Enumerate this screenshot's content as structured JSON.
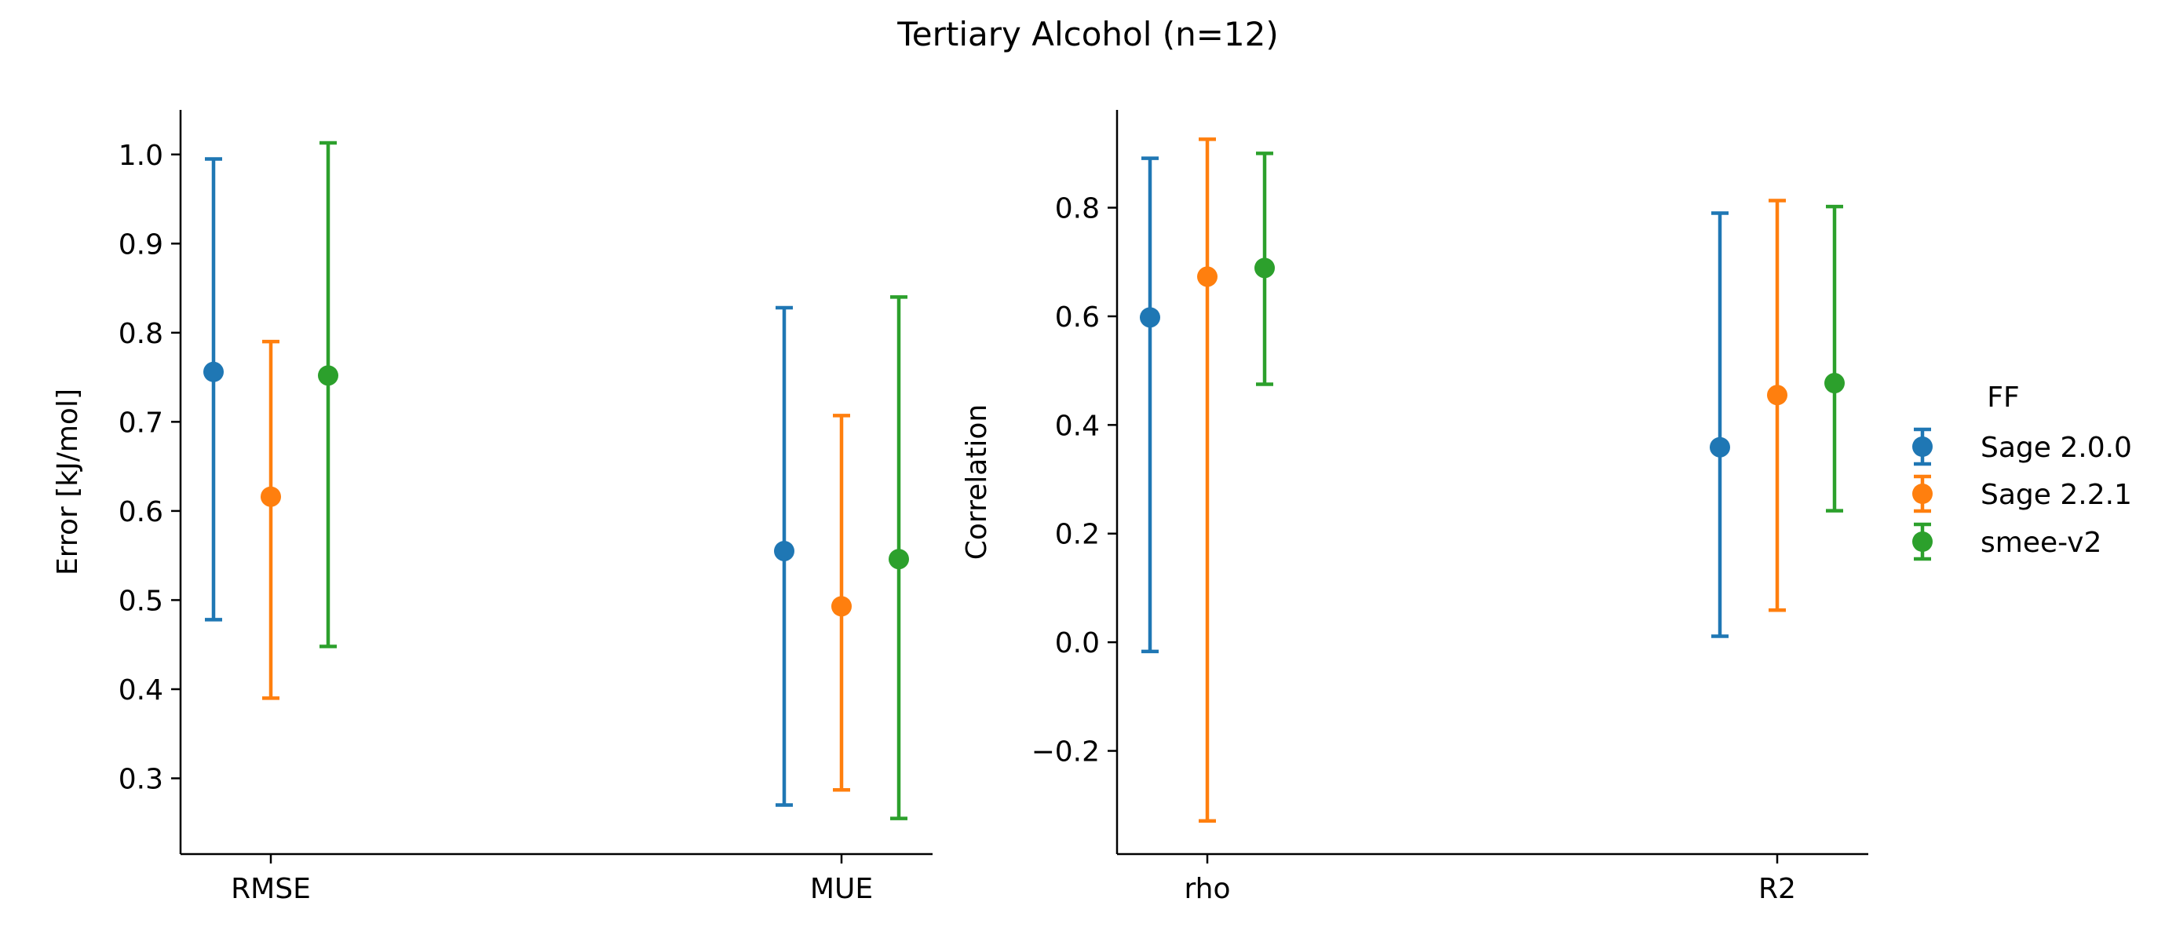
{
  "figure": {
    "title": "Tertiary Alcohol (n=12)"
  },
  "legend": {
    "title": "FF",
    "placement": "right",
    "entries": [
      "Sage 2.0.0",
      "Sage 2.2.1",
      "smee-v2"
    ]
  },
  "colors": {
    "Sage 2.0.0": "#1f77b4",
    "Sage 2.2.1": "#ff7f0e",
    "smee-v2": "#2ca02c"
  },
  "chart_data": [
    {
      "type": "scatter",
      "subtype": "pointplot-with-errorbars",
      "title": "",
      "xlabel": "",
      "ylabel": "Error [kJ/mol]",
      "categories": [
        "RMSE",
        "MUE"
      ],
      "ylim": [
        0.215,
        1.05
      ],
      "yticks": [
        0.3,
        0.4,
        0.5,
        0.6,
        0.7,
        0.8,
        0.9,
        1.0
      ],
      "ytick_labels": [
        "0.3",
        "0.4",
        "0.5",
        "0.6",
        "0.7",
        "0.8",
        "0.9",
        "1.0"
      ],
      "grid": false,
      "series": [
        {
          "name": "Sage 2.0.0",
          "values": [
            0.756,
            0.555
          ],
          "lower": [
            0.478,
            0.27
          ],
          "upper": [
            0.995,
            0.828
          ]
        },
        {
          "name": "Sage 2.2.1",
          "values": [
            0.616,
            0.493
          ],
          "lower": [
            0.39,
            0.287
          ],
          "upper": [
            0.79,
            0.707
          ]
        },
        {
          "name": "smee-v2",
          "values": [
            0.752,
            0.546
          ],
          "lower": [
            0.448,
            0.255
          ],
          "upper": [
            1.013,
            0.84
          ]
        }
      ]
    },
    {
      "type": "scatter",
      "subtype": "pointplot-with-errorbars",
      "title": "",
      "xlabel": "",
      "ylabel": "Correlation",
      "categories": [
        "rho",
        "R2"
      ],
      "ylim": [
        -0.39,
        0.98
      ],
      "yticks": [
        -0.2,
        0.0,
        0.2,
        0.4,
        0.6,
        0.8
      ],
      "ytick_labels": [
        "−0.2",
        "0.0",
        "0.2",
        "0.4",
        "0.6",
        "0.8"
      ],
      "grid": false,
      "series": [
        {
          "name": "Sage 2.0.0",
          "values": [
            0.598,
            0.359
          ],
          "lower": [
            -0.017,
            0.011
          ],
          "upper": [
            0.891,
            0.79
          ]
        },
        {
          "name": "Sage 2.2.1",
          "values": [
            0.673,
            0.455
          ],
          "lower": [
            -0.329,
            0.059
          ],
          "upper": [
            0.926,
            0.813
          ]
        },
        {
          "name": "smee-v2",
          "values": [
            0.689,
            0.477
          ],
          "lower": [
            0.475,
            0.242
          ],
          "upper": [
            0.9,
            0.802
          ]
        }
      ]
    }
  ]
}
